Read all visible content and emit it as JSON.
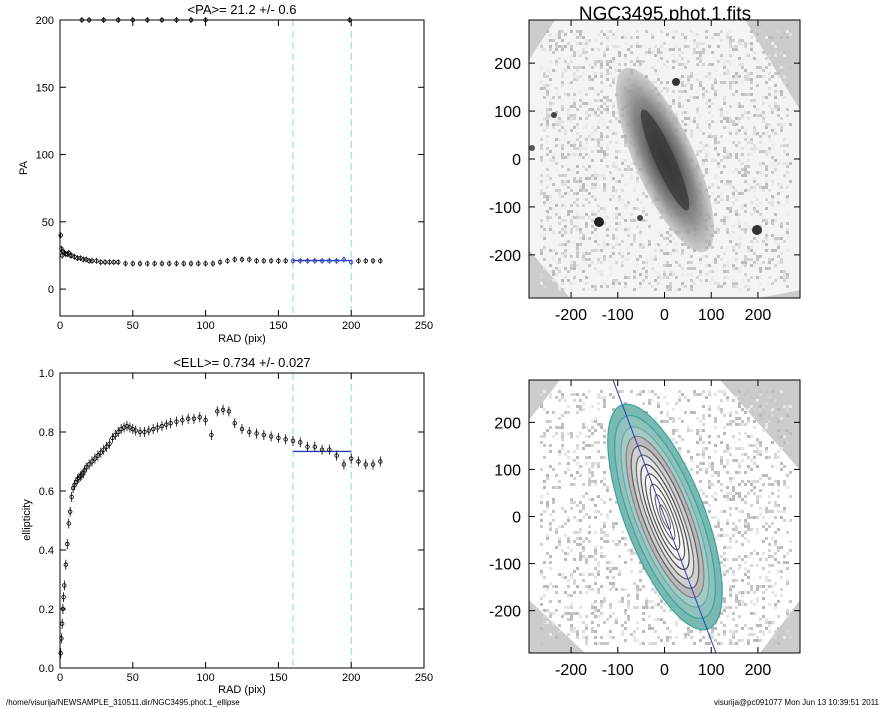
{
  "footer": {
    "left": "/home/visurija/NEWSAMPLE_310511.dir/NGC3495.phot.1_ellipse",
    "right": "visurija@pc091077  Mon Jun 13 10:39:51 2011"
  },
  "chart_data": [
    {
      "type": "scatter",
      "title": "<PA>=  21.2 +/-   0.6",
      "xlabel": "RAD (pix)",
      "ylabel": "PA",
      "xlim": [
        0,
        250
      ],
      "ylim": [
        -20,
        200
      ],
      "xticks": [
        "0",
        "50",
        "100",
        "150",
        "200",
        "250"
      ],
      "yticks": [
        "0",
        "50",
        "100",
        "150",
        "200"
      ],
      "vlines": [
        160,
        200
      ],
      "fit_range": [
        160,
        200
      ],
      "mean_value": 21.2,
      "series": [
        {
          "x": [
            0.5,
            1,
            1.5,
            2,
            3,
            4,
            5,
            6,
            7,
            8,
            10,
            12,
            14,
            16,
            18,
            20,
            22,
            25,
            28,
            31,
            34,
            37,
            40,
            45,
            50,
            55,
            60,
            65,
            70,
            75,
            80,
            85,
            90,
            95,
            100,
            105,
            110,
            115,
            120,
            125,
            130,
            135,
            140,
            145,
            150,
            155,
            160,
            165,
            170,
            175,
            180,
            185,
            190,
            195,
            200,
            205,
            210,
            215,
            220
          ],
          "y": [
            40,
            30,
            25,
            28,
            27,
            26,
            26,
            27,
            25,
            25,
            24,
            23,
            23,
            22,
            22,
            21,
            21,
            21,
            20,
            20,
            20,
            20,
            20,
            19,
            19,
            19,
            19,
            19,
            19,
            19,
            19,
            19,
            19,
            19,
            19,
            19,
            20,
            21,
            22,
            22,
            22,
            21,
            21,
            21,
            21,
            21,
            21,
            21,
            21,
            21,
            21,
            21,
            21,
            22,
            20,
            21,
            21,
            21,
            21
          ]
        },
        {
          "x": [
            15,
            20,
            30,
            40,
            50,
            60,
            70,
            80,
            90,
            100,
            199
          ],
          "y": [
            200,
            200,
            200,
            200,
            200,
            200,
            200,
            200,
            200,
            200,
            200
          ]
        }
      ]
    },
    {
      "type": "scatter",
      "title": "<ELL>= 0.734 +/-  0.027",
      "xlabel": "RAD (pix)",
      "ylabel": "ellipticity",
      "xlim": [
        0,
        250
      ],
      "ylim": [
        0,
        1
      ],
      "xticks": [
        "0",
        "50",
        "100",
        "150",
        "200",
        "250"
      ],
      "yticks": [
        "0.0",
        "0.2",
        "0.4",
        "0.6",
        "0.8",
        "1.0"
      ],
      "vlines": [
        160,
        200
      ],
      "fit_range": [
        160,
        200
      ],
      "mean_value": 0.734,
      "series": [
        {
          "x": [
            0.5,
            1,
            1.5,
            2,
            2.5,
            3,
            4,
            5,
            6,
            7,
            8,
            9,
            10,
            11,
            12,
            13,
            14,
            15,
            16,
            17,
            18,
            20,
            22,
            24,
            26,
            28,
            30,
            32,
            34,
            36,
            38,
            40,
            42,
            44,
            46,
            48,
            50,
            52,
            55,
            58,
            61,
            64,
            67,
            70,
            73,
            76,
            80,
            84,
            88,
            92,
            96,
            100,
            104,
            108,
            112,
            116,
            120,
            125,
            130,
            135,
            140,
            145,
            150,
            155,
            160,
            165,
            170,
            175,
            180,
            185,
            190,
            195,
            200,
            205,
            210,
            215,
            220
          ],
          "y": [
            0.05,
            0.1,
            0.15,
            0.2,
            0.24,
            0.28,
            0.35,
            0.42,
            0.49,
            0.53,
            0.58,
            0.61,
            0.62,
            0.63,
            0.64,
            0.645,
            0.65,
            0.655,
            0.66,
            0.67,
            0.68,
            0.69,
            0.7,
            0.71,
            0.72,
            0.73,
            0.74,
            0.75,
            0.76,
            0.78,
            0.79,
            0.8,
            0.81,
            0.815,
            0.82,
            0.815,
            0.81,
            0.805,
            0.8,
            0.8,
            0.805,
            0.81,
            0.815,
            0.82,
            0.825,
            0.83,
            0.835,
            0.84,
            0.845,
            0.845,
            0.85,
            0.84,
            0.79,
            0.87,
            0.875,
            0.87,
            0.83,
            0.81,
            0.8,
            0.795,
            0.79,
            0.785,
            0.78,
            0.775,
            0.77,
            0.765,
            0.75,
            0.75,
            0.74,
            0.74,
            0.72,
            0.69,
            0.71,
            0.7,
            0.69,
            0.69,
            0.7
          ]
        }
      ]
    },
    {
      "type": "heatmap",
      "title": "NGC3495.phot.1.fits",
      "xlim": [
        -290,
        290
      ],
      "ylim": [
        -290,
        290
      ],
      "xticks": [
        "-200",
        "-100",
        "0",
        "100",
        "200"
      ],
      "yticks": [
        "-200",
        "-100",
        "0",
        "100",
        "200"
      ],
      "galaxy_position_angle_deg": 21.2,
      "ellipticity": 0.734
    },
    {
      "type": "heatmap",
      "title": "",
      "xlim": [
        -290,
        290
      ],
      "ylim": [
        -290,
        290
      ],
      "xticks": [
        "-200",
        "-100",
        "0",
        "100",
        "200"
      ],
      "yticks": [
        "-200",
        "-100",
        "0",
        "100",
        "200"
      ],
      "galaxy_position_angle_deg": 21.2,
      "ellipticity": 0.734
    }
  ],
  "colors": {
    "vline": "#7fdede",
    "fit": "#2a3dbf",
    "contour_outer": "#3aa59a",
    "contour_inner": "#dfe8f0",
    "sky_light": "#ffffff",
    "sky_dark": "#cccccc"
  }
}
